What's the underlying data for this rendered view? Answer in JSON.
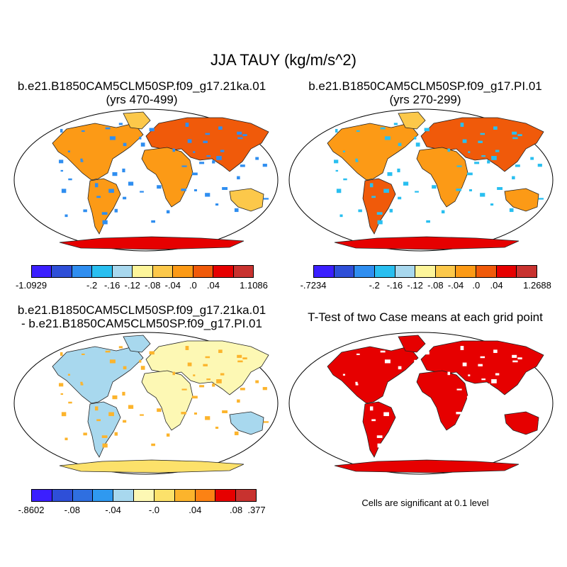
{
  "title": "JJA TAUY (kg/m/s^2)",
  "panels": {
    "top_left": {
      "title_line1": "b.e21.B1850CAM5CLM50SP.f09_g17.21ka.01",
      "title_line2": "(yrs 470-499)",
      "colorbar": {
        "colors": [
          "#3b1fff",
          "#2e4fd8",
          "#2f8ef0",
          "#29bff0",
          "#a8d8ee",
          "#fdf59a",
          "#fcc84a",
          "#fc9a16",
          "#f05a0a",
          "#e60000",
          "#c8322f"
        ],
        "labels": [
          "-1.0929",
          "-.2",
          "-.16",
          "-.12",
          "-.08",
          "-.04",
          ".0",
          ".04",
          "1.1086"
        ]
      }
    },
    "top_right": {
      "title_line1": "b.e21.B1850CAM5CLM50SP.f09_g17.PI.01",
      "title_line2": "(yrs 270-299)",
      "colorbar": {
        "colors": [
          "#3b1fff",
          "#2e4fd8",
          "#2f8ef0",
          "#29bff0",
          "#a8d8ee",
          "#fdf59a",
          "#fcc84a",
          "#fc9a16",
          "#f05a0a",
          "#e60000",
          "#c8322f"
        ],
        "labels": [
          "-.7234",
          "-.2",
          "-.16",
          "-.12",
          "-.08",
          "-.04",
          ".0",
          ".04",
          "1.2688"
        ]
      }
    },
    "bottom_left": {
      "title_line1": "b.e21.B1850CAM5CLM50SP.f09_g17.21ka.01",
      "title_line2": "- b.e21.B1850CAM5CLM50SP.f09_g17.PI.01",
      "colorbar": {
        "colors": [
          "#3b1fff",
          "#2e4fd8",
          "#2f6fe0",
          "#2f99f0",
          "#a8d8ee",
          "#fdf8b4",
          "#fce16a",
          "#fcb42c",
          "#fc8214",
          "#e60000",
          "#c8322f"
        ],
        "labels": [
          "-.8602",
          "-.08",
          "-.04",
          "-.0",
          ".04",
          ".08",
          ".377"
        ]
      }
    },
    "bottom_right": {
      "title": "T-Test of two Case means at each grid point",
      "footnote": "Cells are significant at 0.1 level",
      "significance_color": "#e60000"
    }
  }
}
